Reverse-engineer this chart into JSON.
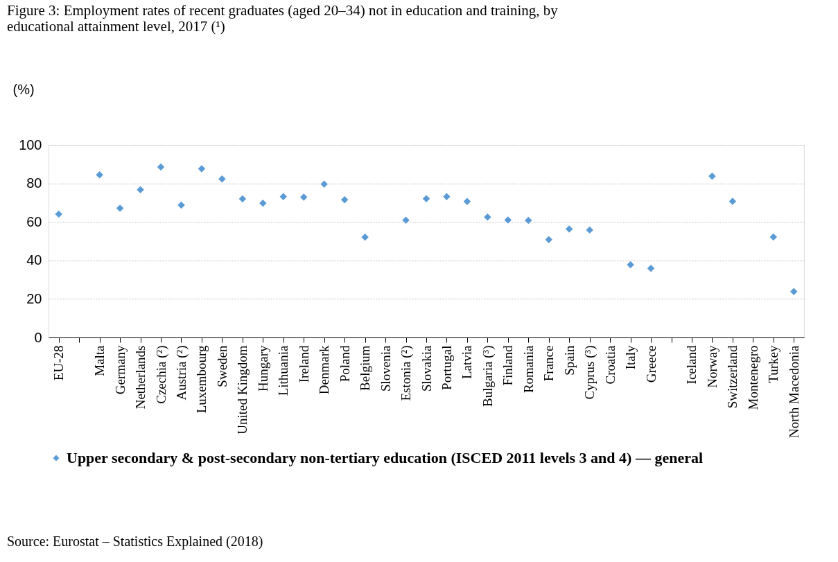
{
  "chart_data": {
    "type": "scatter",
    "title": "Figure 3: Employment rates of recent graduates (aged 20–34) not in education and training, by educational attainment level, 2017 (¹)",
    "ylabel": "(%)",
    "categories": [
      "EU-28",
      null,
      "Malta",
      "Germany",
      "Netherlands",
      "Czechia (²)",
      "Austria (²)",
      "Luxembourg",
      "Sweden",
      "United Kingdom",
      "Hungary",
      "Lithuania",
      "Ireland",
      "Denmark",
      "Poland",
      "Belgium",
      "Slovenia",
      "Estonia (²)",
      "Slovakia",
      "Portugal",
      "Latvia",
      "Bulgaria (³)",
      "Finland",
      "Romania",
      "France",
      "Spain",
      "Cyprus (³)",
      "Croatia",
      "Italy",
      "Greece",
      null,
      "Iceland",
      "Norway",
      "Switzerland",
      "Montenegro",
      "Turkey",
      "North Macedonia"
    ],
    "series": [
      {
        "name": "Upper secondary & post-secondary non-tertiary education (ISCED 2011 levels 3 and 4) — general",
        "color": "#5b9bd5",
        "values": [
          64.0,
          null,
          84.4,
          67.1,
          76.7,
          88.5,
          68.7,
          87.6,
          82.3,
          71.9,
          69.7,
          73.1,
          72.8,
          79.6,
          71.5,
          52.1,
          null,
          60.9,
          72.0,
          73.1,
          70.6,
          62.5,
          61.0,
          60.8,
          50.8,
          56.3,
          55.8,
          null,
          37.8,
          35.9,
          null,
          null,
          83.7,
          70.7,
          null,
          52.2,
          23.8
        ]
      }
    ],
    "ylim": [
      0,
      100
    ],
    "yticks": [
      0,
      20,
      40,
      60,
      80,
      100
    ],
    "grid": "y",
    "marker": "diamond",
    "legend": "bottom",
    "annotations": [
      "Source: Eurostat – Statistics Explained (2018)"
    ]
  }
}
